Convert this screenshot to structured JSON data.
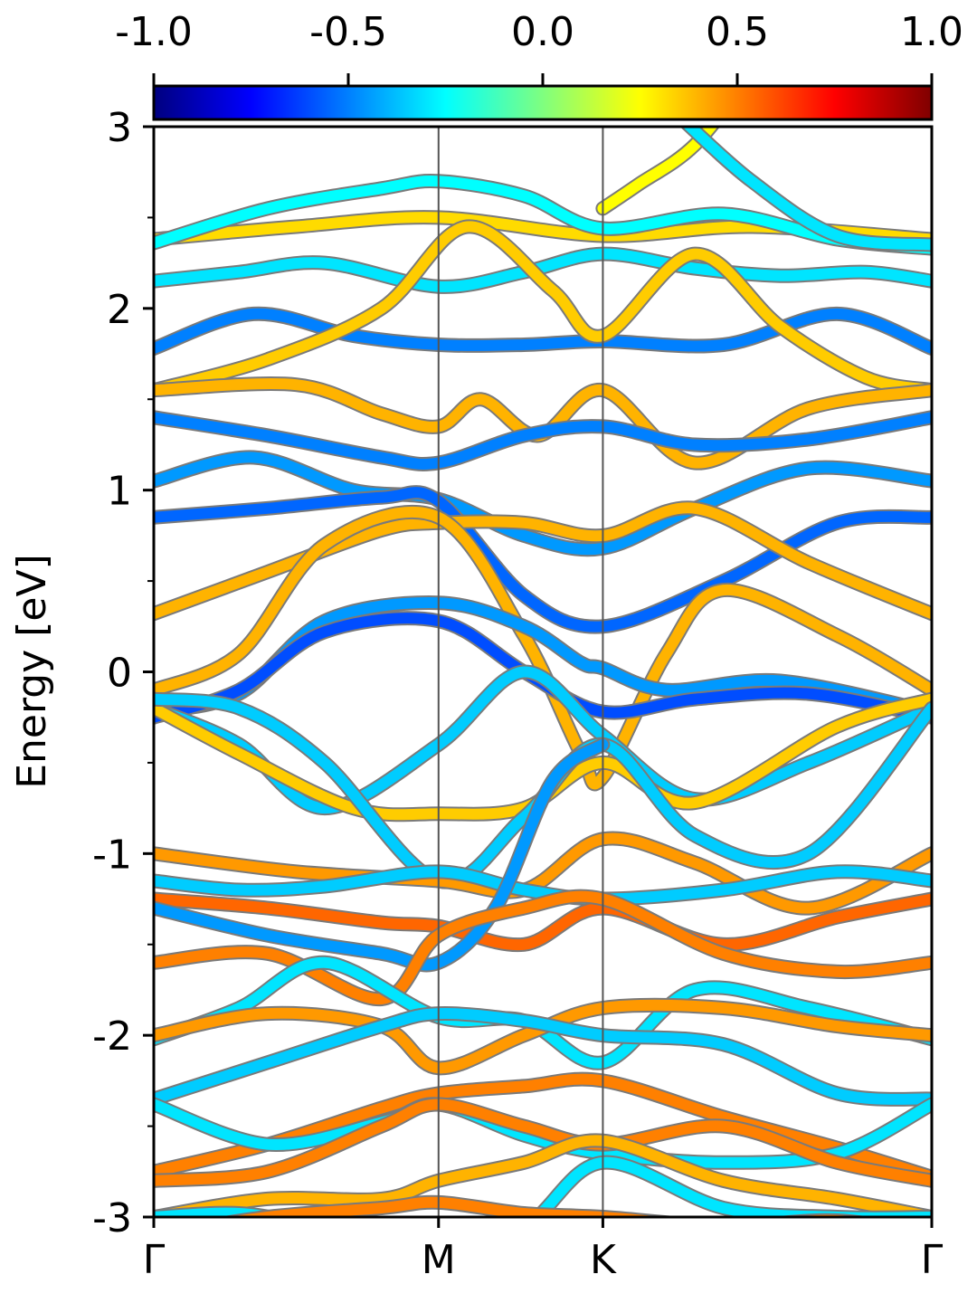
{
  "chart_data": {
    "type": "line",
    "ylabel": "Energy [eV]",
    "xlabel": "",
    "ylim": [
      -3,
      3
    ],
    "y_ticks": [
      -3,
      -2,
      -1,
      0,
      1,
      2,
      3
    ],
    "y_tick_labels": [
      "-3",
      "-2",
      "-1",
      "0",
      "1",
      "2",
      "3"
    ],
    "x_ticks": [
      {
        "label": "Γ",
        "pos": 0
      },
      {
        "label": "M",
        "pos": 1
      },
      {
        "label": "K",
        "pos": 1.577
      },
      {
        "label": "Γ",
        "pos": 2.732
      }
    ],
    "x_range": [
      0,
      2.732
    ],
    "colorbar": {
      "range": [
        -1.0,
        1.0
      ],
      "ticks": [
        -1.0,
        -0.5,
        0.0,
        0.5,
        1.0
      ],
      "tick_labels": [
        "-1.0",
        "-0.5",
        "0.0",
        "0.5",
        "1.0"
      ],
      "colormap": "jet"
    },
    "grid": false,
    "bands": [
      {
        "c": 0.32,
        "k": [
          0,
          0.5,
          1,
          1.577,
          2.1,
          2.732
        ],
        "e": [
          2.38,
          2.45,
          2.5,
          2.4,
          2.45,
          2.38
        ]
      },
      {
        "c": -0.25,
        "k": [
          0,
          0.4,
          0.8,
          1,
          1.3,
          1.577,
          2.0,
          2.4,
          2.732
        ],
        "e": [
          2.36,
          2.55,
          2.66,
          2.7,
          2.62,
          2.44,
          2.52,
          2.38,
          2.33
        ]
      },
      {
        "c": -0.3,
        "k": [
          0,
          0.3,
          0.6,
          1,
          1.3,
          1.577,
          1.9,
          2.2,
          2.5,
          2.732
        ],
        "e": [
          2.15,
          2.2,
          2.25,
          2.12,
          2.2,
          2.3,
          2.22,
          2.18,
          2.2,
          2.15
        ]
      },
      {
        "c": -0.5,
        "k": [
          0,
          0.35,
          0.7,
          1,
          1.3,
          1.577,
          2.0,
          2.4,
          2.732
        ],
        "e": [
          1.78,
          1.97,
          1.85,
          1.8,
          1.8,
          1.82,
          1.8,
          1.97,
          1.78
        ]
      },
      {
        "c": 0.35,
        "k": [
          0,
          0.4,
          0.8,
          1.1,
          1.4,
          1.577,
          1.9,
          2.2,
          2.5,
          2.732
        ],
        "e": [
          1.55,
          1.72,
          2.0,
          2.45,
          2.1,
          1.85,
          2.3,
          1.9,
          1.62,
          1.55
        ]
      },
      {
        "c": 0.4,
        "k": [
          0,
          0.5,
          0.8,
          1,
          1.15,
          1.35,
          1.577,
          1.9,
          2.3,
          2.732
        ],
        "e": [
          1.55,
          1.58,
          1.42,
          1.35,
          1.5,
          1.3,
          1.55,
          1.15,
          1.45,
          1.55
        ]
      },
      {
        "c": -0.5,
        "k": [
          0,
          0.4,
          0.8,
          1,
          1.3,
          1.577,
          1.9,
          2.3,
          2.732
        ],
        "e": [
          1.4,
          1.3,
          1.18,
          1.15,
          1.3,
          1.35,
          1.25,
          1.28,
          1.4
        ]
      },
      {
        "c": -0.45,
        "k": [
          0,
          0.35,
          0.7,
          1,
          1.3,
          1.577,
          1.9,
          2.3,
          2.732
        ],
        "e": [
          1.05,
          1.18,
          1.0,
          0.95,
          0.75,
          0.68,
          0.9,
          1.12,
          1.05
        ]
      },
      {
        "c": -0.55,
        "k": [
          0,
          0.4,
          0.8,
          1,
          1.3,
          1.577,
          2.0,
          2.4,
          2.732
        ],
        "e": [
          0.85,
          0.9,
          0.96,
          0.94,
          0.42,
          0.25,
          0.5,
          0.82,
          0.85
        ]
      },
      {
        "c": 0.4,
        "k": [
          0,
          0.4,
          0.8,
          1,
          1.3,
          1.577,
          1.9,
          2.3,
          2.732
        ],
        "e": [
          0.32,
          0.55,
          0.78,
          0.82,
          0.82,
          0.75,
          0.9,
          0.6,
          0.32
        ]
      },
      {
        "c": 0.4,
        "k": [
          0,
          0.3,
          0.6,
          1,
          1.3,
          1.5,
          1.577,
          1.8,
          2.0,
          2.4,
          2.732
        ],
        "e": [
          -0.1,
          0.1,
          0.7,
          0.85,
          0.2,
          -0.45,
          -0.58,
          0.1,
          0.45,
          0.2,
          -0.1
        ]
      },
      {
        "c": -0.45,
        "k": [
          0,
          0.3,
          0.6,
          1,
          1.3,
          1.5,
          1.577,
          1.8,
          2.2,
          2.732
        ],
        "e": [
          -0.22,
          -0.12,
          0.28,
          0.38,
          0.25,
          0.05,
          0.02,
          -0.1,
          -0.05,
          -0.22
        ]
      },
      {
        "c": -0.6,
        "k": [
          0,
          0.3,
          0.6,
          1,
          1.3,
          1.577,
          1.9,
          2.3,
          2.732
        ],
        "e": [
          -0.25,
          -0.1,
          0.22,
          0.28,
          0.0,
          -0.22,
          -0.15,
          -0.12,
          -0.25
        ]
      },
      {
        "c": -0.35,
        "k": [
          0,
          0.3,
          0.6,
          1,
          1.3,
          1.577,
          1.9,
          2.3,
          2.732
        ],
        "e": [
          -0.2,
          -0.4,
          -0.75,
          -0.4,
          0.0,
          -0.35,
          -0.7,
          -0.5,
          -0.2
        ]
      },
      {
        "c": 0.35,
        "k": [
          0,
          0.3,
          0.7,
          1,
          1.3,
          1.577,
          1.9,
          2.4,
          2.732
        ],
        "e": [
          -0.2,
          -0.45,
          -0.75,
          -0.78,
          -0.75,
          -0.5,
          -0.72,
          -0.3,
          -0.15
        ]
      },
      {
        "c": -0.35,
        "k": [
          0,
          0.3,
          0.6,
          1,
          1.3,
          1.577,
          1.9,
          2.3,
          2.732
        ],
        "e": [
          -0.15,
          -0.2,
          -0.5,
          -1.15,
          -0.8,
          -0.4,
          -0.9,
          -1.0,
          -0.2
        ]
      },
      {
        "c": 0.45,
        "k": [
          0,
          0.5,
          1,
          1.3,
          1.577,
          1.9,
          2.3,
          2.732
        ],
        "e": [
          -1.0,
          -1.1,
          -1.15,
          -1.2,
          -0.92,
          -1.05,
          -1.3,
          -1.0
        ]
      },
      {
        "c": -0.35,
        "k": [
          0,
          0.3,
          0.6,
          1,
          1.3,
          1.577,
          2.0,
          2.4,
          2.732
        ],
        "e": [
          -1.15,
          -1.2,
          -1.18,
          -1.1,
          -1.2,
          -1.25,
          -1.2,
          -1.1,
          -1.15
        ]
      },
      {
        "c": 0.55,
        "k": [
          0,
          0.4,
          0.8,
          1,
          1.3,
          1.577,
          2.0,
          2.4,
          2.732
        ],
        "e": [
          -1.25,
          -1.3,
          -1.38,
          -1.4,
          -1.5,
          -1.3,
          -1.5,
          -1.35,
          -1.25
        ]
      },
      {
        "c": -0.45,
        "k": [
          0,
          0.4,
          0.8,
          1,
          1.2,
          1.4,
          1.577
        ],
        "e": [
          -1.3,
          -1.45,
          -1.55,
          -1.6,
          -1.3,
          -0.6,
          -0.4
        ]
      },
      {
        "c": 0.5,
        "k": [
          0,
          0.4,
          0.8,
          1,
          1.3,
          1.577,
          2.0,
          2.4,
          2.732
        ],
        "e": [
          -1.6,
          -1.55,
          -1.8,
          -1.45,
          -1.3,
          -1.25,
          -1.55,
          -1.65,
          -1.6
        ]
      },
      {
        "c": -0.3,
        "k": [
          0,
          0.3,
          0.6,
          1,
          1.3,
          1.577,
          1.9,
          2.3,
          2.732
        ],
        "e": [
          -2.02,
          -1.85,
          -1.6,
          -1.9,
          -1.92,
          -2.15,
          -1.75,
          -1.85,
          -2.02
        ]
      },
      {
        "c": 0.45,
        "k": [
          0,
          0.4,
          0.8,
          1,
          1.3,
          1.577,
          2.0,
          2.4,
          2.732
        ],
        "e": [
          -2.0,
          -1.88,
          -1.95,
          -2.18,
          -2.0,
          -1.85,
          -1.85,
          -1.95,
          -2.0
        ]
      },
      {
        "c": -0.35,
        "k": [
          0,
          0.4,
          0.8,
          1,
          1.3,
          1.577,
          2.0,
          2.4,
          2.732
        ],
        "e": [
          -2.35,
          -2.15,
          -1.95,
          -1.88,
          -1.92,
          -2.0,
          -2.05,
          -2.32,
          -2.35
        ]
      },
      {
        "c": 0.5,
        "k": [
          0,
          0.4,
          0.8,
          1,
          1.3,
          1.577,
          2.0,
          2.4,
          2.732
        ],
        "e": [
          -2.75,
          -2.6,
          -2.4,
          -2.32,
          -2.28,
          -2.25,
          -2.45,
          -2.62,
          -2.78
        ]
      },
      {
        "c": -0.3,
        "k": [
          0,
          0.4,
          0.8,
          1,
          1.3,
          1.577,
          2.0,
          2.4,
          2.732
        ],
        "e": [
          -2.38,
          -2.6,
          -2.48,
          -2.38,
          -2.55,
          -2.65,
          -2.7,
          -2.65,
          -2.38
        ]
      },
      {
        "c": 0.5,
        "k": [
          0,
          0.4,
          0.8,
          1,
          1.3,
          1.577,
          2.0,
          2.4,
          2.732
        ],
        "e": [
          -2.8,
          -2.75,
          -2.5,
          -2.38,
          -2.5,
          -2.6,
          -2.5,
          -2.7,
          -2.8
        ]
      },
      {
        "c": 0.4,
        "k": [
          0,
          0.4,
          0.8,
          1,
          1.3,
          1.577,
          2.0,
          2.4,
          2.732
        ],
        "e": [
          -3.0,
          -2.9,
          -2.9,
          -2.8,
          -2.7,
          -2.58,
          -2.8,
          -2.9,
          -3.0
        ]
      },
      {
        "c": -0.3,
        "k": [
          0,
          0.3,
          0.6,
          1,
          1.3,
          1.577,
          2.0,
          2.4,
          2.732
        ],
        "e": [
          -3.0,
          -2.98,
          -3.05,
          -3.1,
          -3.05,
          -2.7,
          -2.95,
          -3.0,
          -3.0
        ]
      },
      {
        "c": 0.5,
        "k": [
          0,
          0.4,
          0.8,
          1,
          1.3,
          1.577,
          2.0,
          2.4,
          2.732
        ],
        "e": [
          -3.1,
          -3.0,
          -2.95,
          -2.92,
          -2.98,
          -3.0,
          -3.05,
          -3.02,
          -3.1
        ]
      },
      {
        "c": 0.25,
        "k": [
          1.577,
          1.7,
          1.9,
          2.1
        ],
        "e": [
          2.55,
          2.68,
          2.9,
          3.3
        ]
      },
      {
        "c": -0.3,
        "k": [
          1.85,
          2.1,
          2.4,
          2.732
        ],
        "e": [
          3.05,
          2.7,
          2.4,
          2.35
        ]
      }
    ]
  }
}
